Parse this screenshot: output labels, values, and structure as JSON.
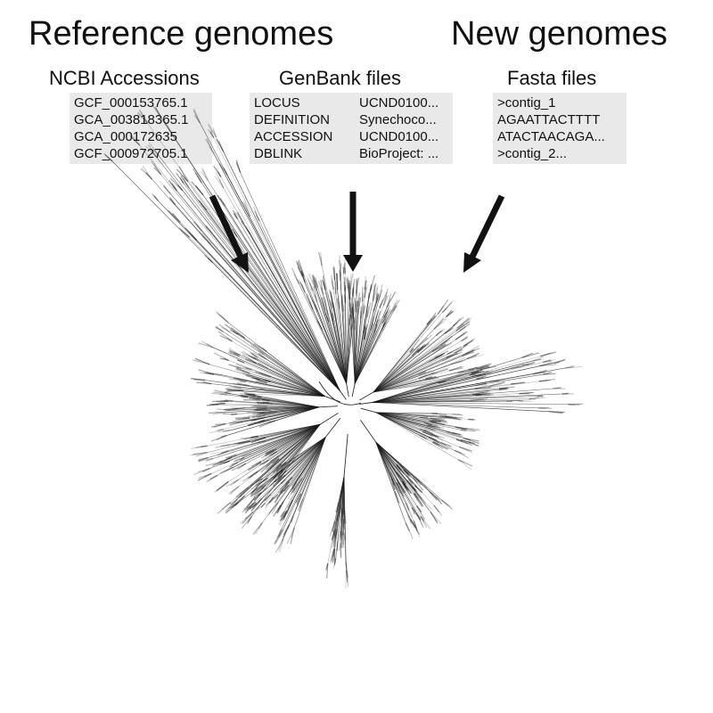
{
  "headings": {
    "reference": "Reference genomes",
    "new": "New genomes"
  },
  "ncbi": {
    "title": "NCBI Accessions",
    "accessions": [
      "GCF_000153765.1",
      "GCA_003818365.1",
      "GCA_000172635",
      "GCF_000972705.1"
    ]
  },
  "genbank": {
    "title": "GenBank files",
    "rows": [
      {
        "key": "LOCUS",
        "value": "UCND0100..."
      },
      {
        "key": "DEFINITION",
        "value": "Synechoco..."
      },
      {
        "key": "ACCESSION",
        "value": "UCND0100..."
      },
      {
        "key": "DBLINK",
        "value": "BioProject: ..."
      }
    ]
  },
  "fasta": {
    "title": "Fasta files",
    "lines": [
      ">contig_1",
      "AGAATTACTTTT",
      "ATACTAACAGA...",
      ">contig_2..."
    ]
  },
  "colors": {
    "box_background": "#e9e9e9",
    "arrow": "#111111",
    "tree_branch": "#1a1a1a"
  }
}
